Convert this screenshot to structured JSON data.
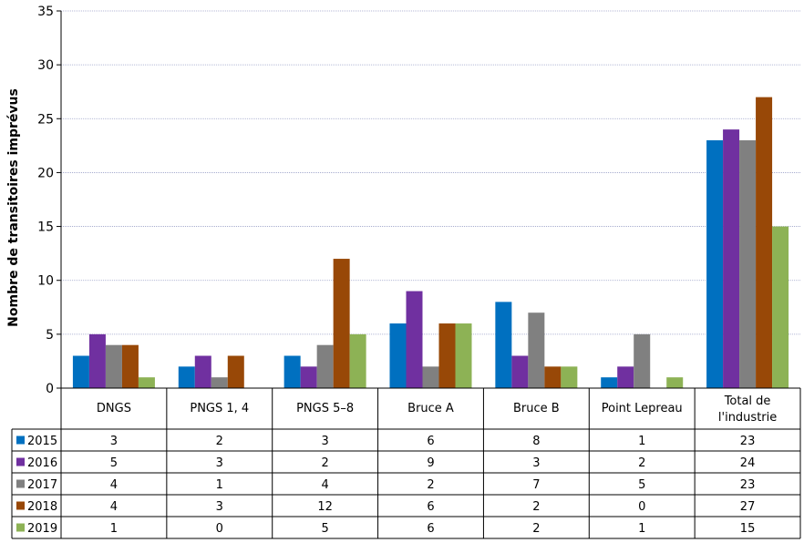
{
  "chart_data": {
    "type": "bar",
    "title": "",
    "xlabel": "",
    "ylabel": "Nombre de transitoires imprévus",
    "ylim": [
      0,
      35
    ],
    "yticks": [
      0,
      5,
      10,
      15,
      20,
      25,
      30,
      35
    ],
    "grid": true,
    "legend": "data-table-left",
    "categories": [
      "DNGS",
      "PNGS 1, 4",
      "PNGS 5–8",
      "Bruce A",
      "Bruce B",
      "Point Lepreau",
      "Total de l'industrie"
    ],
    "series": [
      {
        "name": "2015",
        "color": "#0070c0",
        "values": [
          3,
          2,
          3,
          6,
          8,
          1,
          23
        ]
      },
      {
        "name": "2016",
        "color": "#7030a0",
        "values": [
          5,
          3,
          2,
          9,
          3,
          2,
          24
        ]
      },
      {
        "name": "2017",
        "color": "#808080",
        "values": [
          4,
          1,
          4,
          2,
          7,
          5,
          23
        ]
      },
      {
        "name": "2018",
        "color": "#984807",
        "values": [
          4,
          3,
          12,
          6,
          2,
          0,
          27
        ]
      },
      {
        "name": "2019",
        "color": "#8db255",
        "values": [
          1,
          0,
          5,
          6,
          2,
          1,
          15
        ]
      }
    ]
  }
}
